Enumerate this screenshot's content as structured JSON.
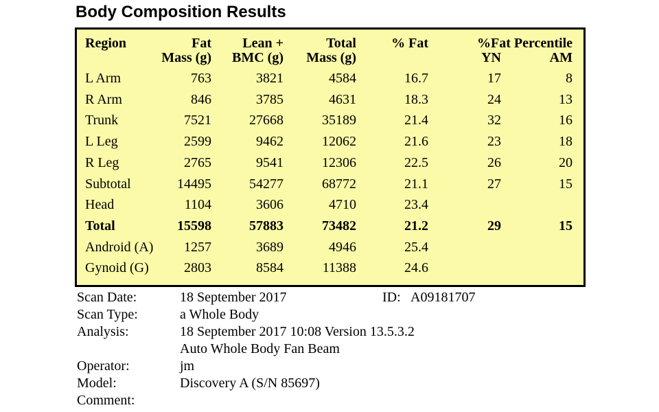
{
  "header": {
    "title": "Body Composition Results"
  },
  "table": {
    "group_header": "%Fat Percentile",
    "columns": [
      [
        "Region"
      ],
      [
        "Fat",
        "Mass (g)"
      ],
      [
        "Lean +",
        "BMC (g)"
      ],
      [
        "Total",
        "Mass (g)"
      ],
      [
        "% Fat"
      ],
      [
        "YN"
      ],
      [
        "AM"
      ]
    ],
    "rows": [
      {
        "cells": [
          "L Arm",
          763,
          3821,
          4584,
          16.7,
          17,
          8
        ]
      },
      {
        "cells": [
          "R Arm",
          846,
          3785,
          4631,
          18.3,
          24,
          13
        ]
      },
      {
        "cells": [
          "Trunk",
          7521,
          27668,
          35189,
          21.4,
          32,
          16
        ]
      },
      {
        "cells": [
          "L Leg",
          2599,
          9462,
          12062,
          21.6,
          23,
          18
        ]
      },
      {
        "cells": [
          "R Leg",
          2765,
          9541,
          12306,
          22.5,
          26,
          20
        ]
      },
      {
        "cells": [
          "Subtotal",
          14495,
          54277,
          68772,
          21.1,
          27,
          15
        ]
      },
      {
        "cells": [
          "Head",
          1104,
          3606,
          4710,
          23.4
        ]
      },
      {
        "cells": [
          "Total",
          15598,
          57883,
          73482,
          21.2,
          29,
          15
        ],
        "bold": true
      },
      {
        "cells": [
          "Android (A)",
          1257,
          3689,
          4946,
          25.4
        ]
      },
      {
        "cells": [
          "Gynoid (G)",
          2803,
          8584,
          11388,
          24.6
        ]
      }
    ]
  },
  "scan_info": {
    "rows": [
      {
        "label": "Scan Date:",
        "values": [
          "18 September 2017"
        ]
      },
      {
        "label": "Scan Type:",
        "values": [
          "a Whole Body"
        ]
      },
      {
        "label": "Analysis:",
        "values": [
          "18 September 2017 10:08 Version 13.5.3.2",
          "Auto Whole Body Fan Beam"
        ]
      },
      {
        "label": "Operator:",
        "values": [
          "jm"
        ]
      },
      {
        "label": "Model:",
        "values": [
          "Discovery A (S/N 85697)"
        ]
      },
      {
        "label": "Comment:"
      }
    ],
    "id": {
      "label": "ID:",
      "value": "A09181707"
    }
  }
}
